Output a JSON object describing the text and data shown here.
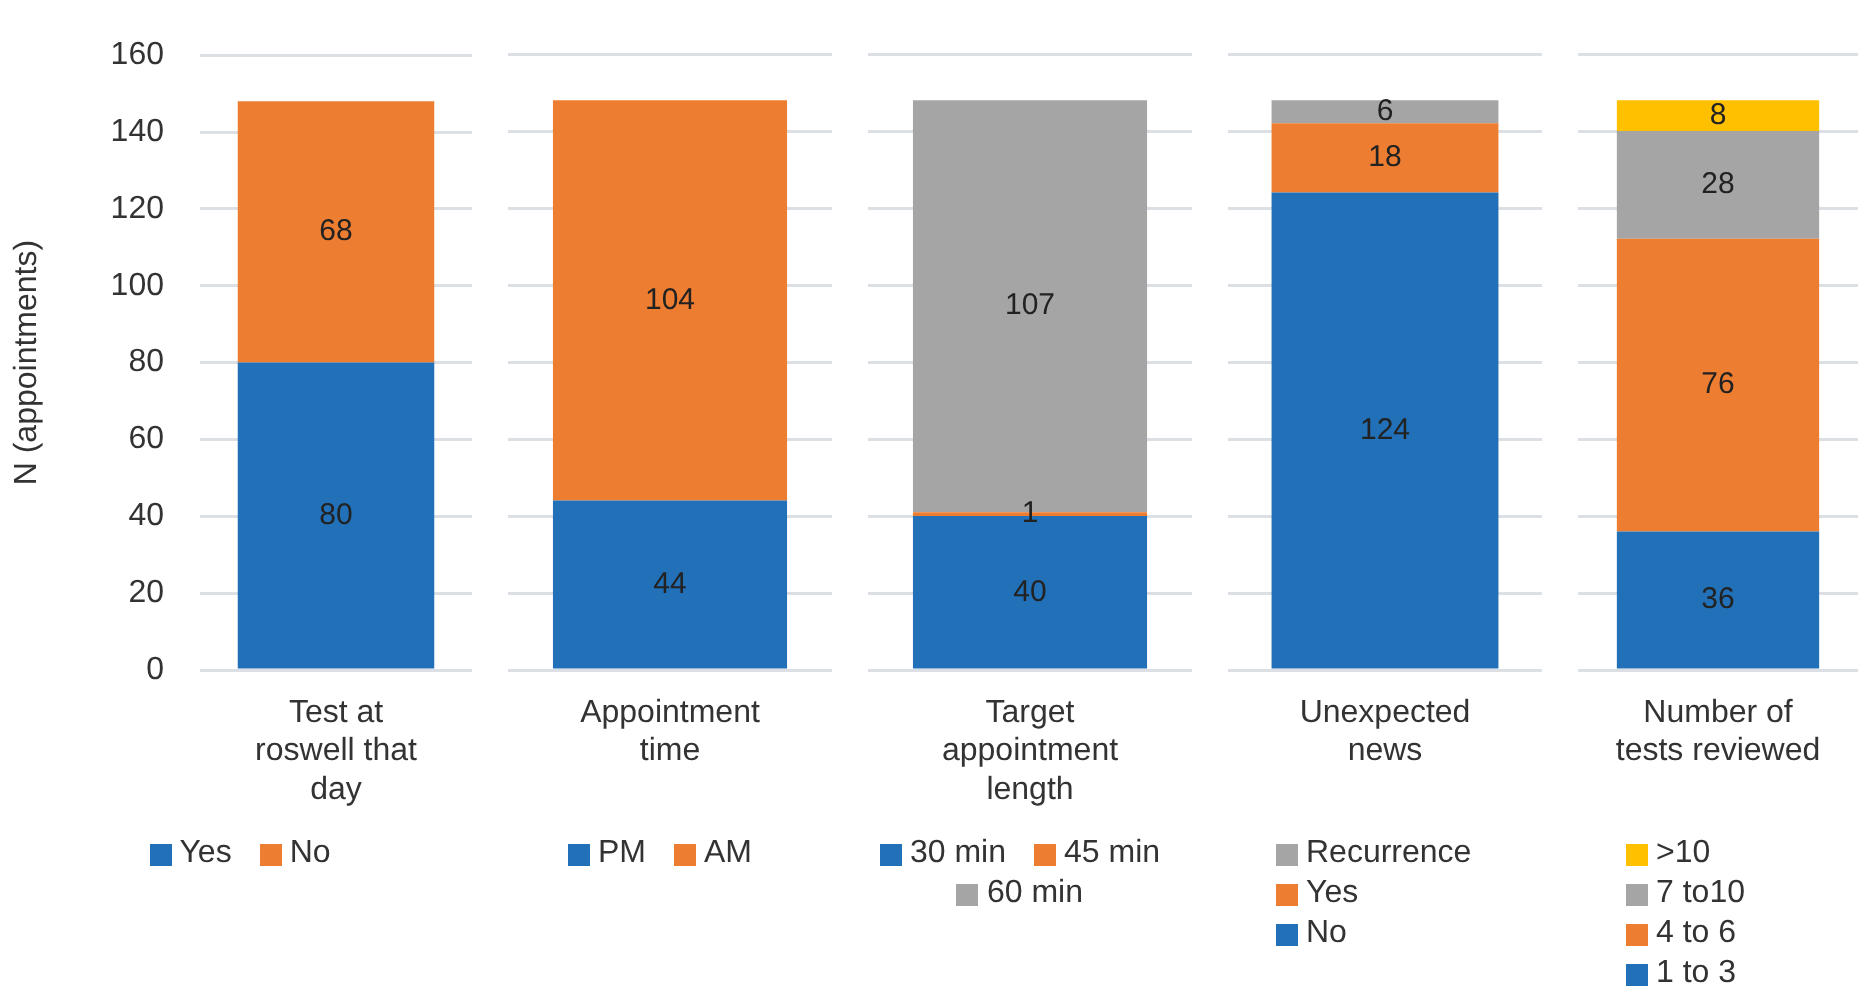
{
  "chart_data": [
    {
      "type": "bar",
      "stacked": true,
      "categories": [
        "Test at roswell that day"
      ],
      "ylabel": "N (appointments)",
      "ylim": [
        0,
        160
      ],
      "yticks": [
        0,
        20,
        40,
        60,
        80,
        100,
        120,
        140,
        160
      ],
      "grid": "y",
      "legend": "bottom",
      "data_labels": true,
      "series": [
        {
          "name": "Yes",
          "color": "#2170b8",
          "values": [
            80
          ]
        },
        {
          "name": "No",
          "color": "#ed7d31",
          "values": [
            68
          ]
        }
      ]
    },
    {
      "type": "bar",
      "stacked": true,
      "categories": [
        "Appointment time"
      ],
      "ylim": [
        0,
        160
      ],
      "yticks": [
        0,
        20,
        40,
        60,
        80,
        100,
        120,
        140,
        160
      ],
      "tick_labels": "x",
      "grid": "y",
      "legend": "bottom",
      "data_labels": true,
      "series": [
        {
          "name": "PM",
          "color": "#2170b8",
          "values": [
            44
          ]
        },
        {
          "name": "AM",
          "color": "#ed7d31",
          "values": [
            104
          ]
        }
      ]
    },
    {
      "type": "bar",
      "stacked": true,
      "categories": [
        "Target appointment length"
      ],
      "ylim": [
        0,
        160
      ],
      "yticks": [
        0,
        20,
        40,
        60,
        80,
        100,
        120,
        140,
        160
      ],
      "tick_labels": "x",
      "grid": "y",
      "legend": "bottom",
      "data_labels": true,
      "series": [
        {
          "name": "30 min",
          "color": "#2170b8",
          "values": [
            40
          ]
        },
        {
          "name": "45 min",
          "color": "#ed7d31",
          "values": [
            1
          ]
        },
        {
          "name": "60 min",
          "color": "#a5a5a5",
          "values": [
            107
          ]
        }
      ]
    },
    {
      "type": "bar",
      "stacked": true,
      "categories": [
        "Unexpected news"
      ],
      "ylim": [
        0,
        160
      ],
      "yticks": [
        0,
        20,
        40,
        60,
        80,
        100,
        120,
        140,
        160
      ],
      "tick_labels": "x",
      "grid": "y",
      "legend": "bottom",
      "data_labels": true,
      "series": [
        {
          "name": "No",
          "color": "#2170b8",
          "values": [
            124
          ]
        },
        {
          "name": "Yes",
          "color": "#ed7d31",
          "values": [
            18
          ]
        },
        {
          "name": "Recurrence",
          "color": "#a5a5a5",
          "values": [
            6
          ]
        }
      ]
    },
    {
      "type": "bar",
      "stacked": true,
      "categories": [
        "Number of tests reviewed"
      ],
      "ylim": [
        0,
        160
      ],
      "yticks": [
        0,
        20,
        40,
        60,
        80,
        100,
        120,
        140,
        160
      ],
      "tick_labels": "x",
      "grid": "y",
      "legend": "bottom",
      "data_labels": true,
      "series": [
        {
          "name": "1 to 3",
          "color": "#2170b8",
          "values": [
            36
          ]
        },
        {
          "name": "4 to 6",
          "color": "#ed7d31",
          "values": [
            76
          ]
        },
        {
          "name": "7 to10",
          "color": "#a5a5a5",
          "values": [
            28
          ]
        },
        {
          "name": ">10",
          "color": "#ffc000",
          "values": [
            8
          ]
        }
      ]
    }
  ]
}
